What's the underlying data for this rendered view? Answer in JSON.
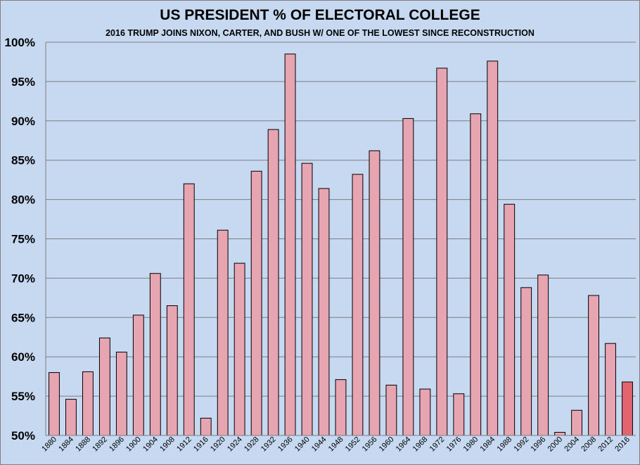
{
  "chart_data": {
    "type": "bar",
    "title": "US PRESIDENT % OF ELECTORAL COLLEGE",
    "subtitle": "2016 TRUMP JOINS NIXON, CARTER, AND BUSH W/ ONE OF THE LOWEST SINCE RECONSTRUCTION",
    "xlabel": "",
    "ylabel": "",
    "ylim": [
      50,
      100
    ],
    "yticks": [
      "50%",
      "55%",
      "60%",
      "65%",
      "70%",
      "75%",
      "80%",
      "85%",
      "90%",
      "95%",
      "100%"
    ],
    "grid": true,
    "legend": "none",
    "categories": [
      "1880",
      "1884",
      "1888",
      "1892",
      "1896",
      "1900",
      "1904",
      "1908",
      "1912",
      "1916",
      "1920",
      "1924",
      "1928",
      "1932",
      "1936",
      "1940",
      "1944",
      "1948",
      "1952",
      "1956",
      "1960",
      "1964",
      "1968",
      "1972",
      "1976",
      "1980",
      "1984",
      "1988",
      "1992",
      "1996",
      "2000",
      "2004",
      "2008",
      "2012",
      "2016"
    ],
    "values": [
      58.0,
      54.6,
      58.1,
      62.4,
      60.6,
      65.3,
      70.6,
      66.5,
      82.0,
      52.2,
      76.1,
      71.9,
      83.6,
      88.9,
      98.5,
      84.6,
      81.4,
      57.1,
      83.2,
      86.2,
      56.4,
      90.3,
      55.9,
      96.7,
      55.3,
      90.9,
      97.6,
      79.4,
      68.8,
      70.4,
      50.4,
      53.2,
      67.8,
      61.7,
      56.8
    ],
    "colors": {
      "bar": "#e6a5b1",
      "highlight_bar": "#e2646f",
      "bar_border": "#000000",
      "grid": "#7f7f7f",
      "background": "#c6d9f1"
    },
    "highlight_category": "2016"
  }
}
